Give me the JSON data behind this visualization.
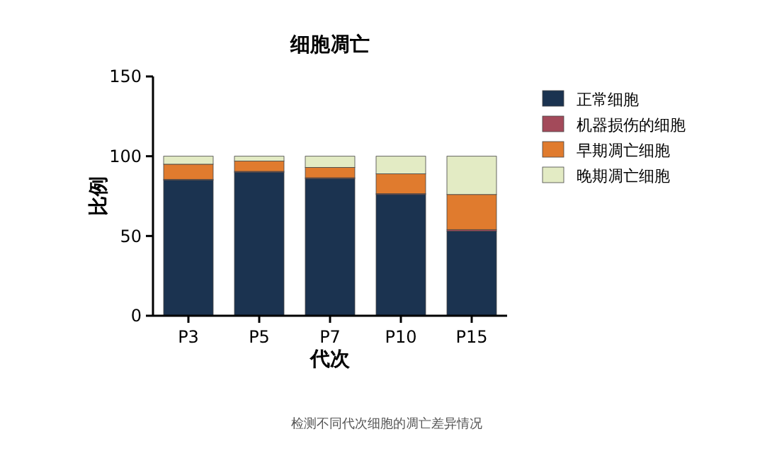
{
  "chart_data": {
    "type": "bar",
    "title": "细胞凋亡",
    "xlabel": "代次",
    "ylabel": "比例",
    "categories": [
      "P3",
      "P5",
      "P7",
      "P10",
      "P15"
    ],
    "stacked": true,
    "ylim": [
      0,
      150
    ],
    "yticks": [
      0,
      50,
      100,
      150
    ],
    "grid": false,
    "legend": "right",
    "annotations": [
      "检测不同代次细胞的凋亡差异情况"
    ],
    "series": [
      {
        "name": "正常细胞",
        "color": "#1b3350",
        "values": [
          85,
          90,
          86,
          76,
          53
        ]
      },
      {
        "name": "机器损伤的细胞",
        "color": "#a34a5a",
        "values": [
          0.5,
          0.5,
          0.5,
          0.5,
          1
        ]
      },
      {
        "name": "早期凋亡细胞",
        "color": "#e07b2e",
        "values": [
          9.5,
          6.5,
          6.5,
          12.5,
          22
        ]
      },
      {
        "name": "晚期凋亡细胞",
        "color": "#e3ebc4",
        "values": [
          5,
          3,
          7,
          11,
          24
        ]
      }
    ]
  }
}
